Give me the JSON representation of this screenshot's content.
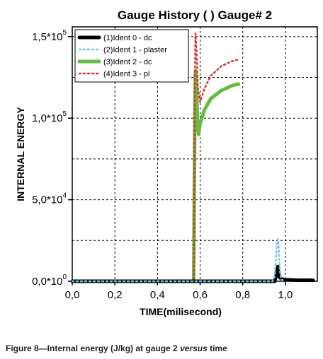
{
  "chart_data": {
    "type": "line",
    "title": "Gauge History ( ) Gauge#  2",
    "xlabel": "TIME(milisecond)",
    "ylabel": "INTERNAL ENERGY",
    "xlim": [
      0.0,
      1.15
    ],
    "ylim": [
      0,
      156000
    ],
    "x_ticks": [
      0.0,
      0.2,
      0.4,
      0.6,
      0.8,
      1.0
    ],
    "x_tick_labels": [
      "0,0",
      "0,2",
      "0,4",
      "0,6",
      "0,8",
      "1,0"
    ],
    "y_ticks": [
      0,
      50000,
      100000,
      150000
    ],
    "y_tick_labels": [
      {
        "mantissa": "0,0*10",
        "exp": "0"
      },
      {
        "mantissa": "5,0*10",
        "exp": "4"
      },
      {
        "mantissa": "1,0*10",
        "exp": "5"
      },
      {
        "mantissa": "1,5*10",
        "exp": "5"
      }
    ],
    "grid": true,
    "legend_position": "top-left",
    "series": [
      {
        "name": "(1)Ident 0 - dc",
        "color": "#000000",
        "style": "solid-thick",
        "points": [
          [
            0.0,
            0
          ],
          [
            0.9,
            0
          ],
          [
            0.95,
            0
          ],
          [
            0.96,
            5000
          ],
          [
            0.965,
            9000
          ],
          [
            0.97,
            3000
          ],
          [
            0.98,
            1500
          ],
          [
            1.0,
            900
          ],
          [
            1.05,
            700
          ],
          [
            1.13,
            600
          ]
        ]
      },
      {
        "name": "(2)Ident 1 - plaster",
        "color": "#6ec6e6",
        "style": "dotted",
        "points": [
          [
            0.0,
            0
          ],
          [
            0.94,
            0
          ],
          [
            0.95,
            3000
          ],
          [
            0.96,
            22000
          ],
          [
            0.965,
            26000
          ],
          [
            0.97,
            18000
          ],
          [
            0.975,
            6000
          ],
          [
            0.98,
            1000
          ],
          [
            1.0,
            0
          ]
        ]
      },
      {
        "name": "(3)Ident 2 - dc",
        "color": "#66bb44",
        "style": "solid-thick",
        "points": [
          [
            0.0,
            0
          ],
          [
            0.57,
            0
          ],
          [
            0.575,
            100000
          ],
          [
            0.578,
            129000
          ],
          [
            0.583,
            120000
          ],
          [
            0.588,
            97000
          ],
          [
            0.593,
            90000
          ],
          [
            0.6,
            97000
          ],
          [
            0.62,
            105000
          ],
          [
            0.65,
            112000
          ],
          [
            0.7,
            117000
          ],
          [
            0.75,
            120000
          ],
          [
            0.78,
            121000
          ]
        ]
      },
      {
        "name": "(4)Ident 3 - pl",
        "color": "#dd3333",
        "style": "dotted",
        "points": [
          [
            0.0,
            0
          ],
          [
            0.57,
            0
          ],
          [
            0.575,
            120000
          ],
          [
            0.578,
            152000
          ],
          [
            0.583,
            142000
          ],
          [
            0.59,
            118000
          ],
          [
            0.6,
            110000
          ],
          [
            0.62,
            118000
          ],
          [
            0.65,
            126000
          ],
          [
            0.7,
            132000
          ],
          [
            0.75,
            135000
          ],
          [
            0.78,
            136000
          ]
        ]
      }
    ]
  },
  "caption": {
    "main": "Figure 8—Internal energy (J/kg) at gauge 2 ",
    "italic": "versus",
    "tail": " time"
  }
}
